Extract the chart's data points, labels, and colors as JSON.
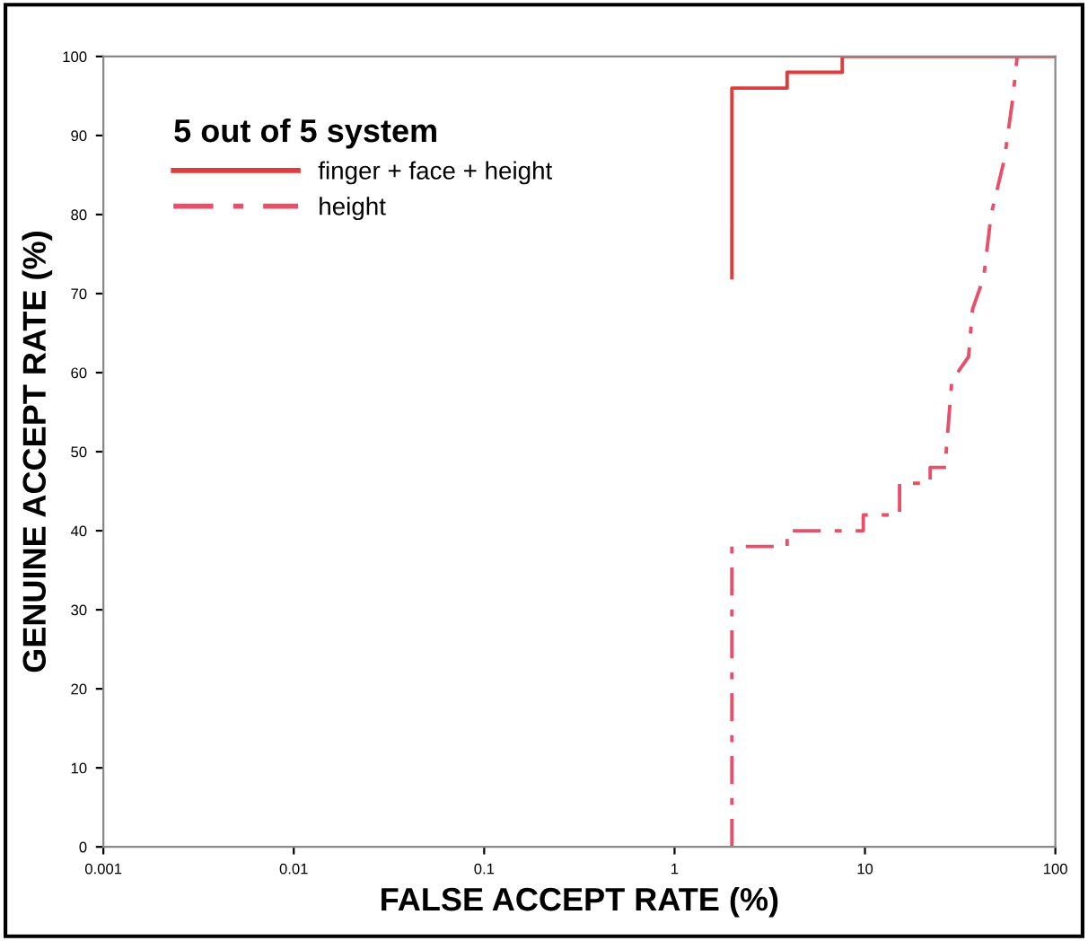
{
  "chart_data": {
    "type": "line",
    "xlabel": "FALSE ACCEPT RATE (%)",
    "ylabel": "GENUINE ACCEPT RATE (%)",
    "legend_title": "5 out of 5 system",
    "legend": "top left",
    "log": "x",
    "xlim": [
      0.001,
      100
    ],
    "xticks": [
      0.001,
      0.01,
      0.1,
      1,
      10,
      100
    ],
    "ylim": [
      0,
      100
    ],
    "yticks": [
      0,
      10,
      20,
      30,
      40,
      50,
      60,
      70,
      80,
      90,
      100
    ],
    "grid": false,
    "series": [
      {
        "name": "finger + face + height",
        "color": "#e03c3c",
        "line_style": "solid",
        "x": [
          2,
          2,
          3.9,
          3.9,
          7.6,
          7.6,
          100
        ],
        "values": [
          72,
          96,
          96,
          98,
          98,
          100,
          100
        ]
      },
      {
        "name": "height",
        "color": "#e8506a",
        "line_style": "dashed",
        "x": [
          2,
          2,
          3.9,
          3.9,
          9.8,
          9.8,
          15.2,
          15.2,
          22,
          22,
          26.7,
          26.7,
          28.6,
          35,
          36.7,
          42,
          46,
          54,
          60,
          63
        ],
        "values": [
          0,
          38,
          38,
          40,
          40,
          42,
          42,
          46,
          46,
          48,
          48,
          50,
          59,
          62,
          68,
          72,
          80,
          87,
          95,
          100
        ]
      }
    ]
  }
}
